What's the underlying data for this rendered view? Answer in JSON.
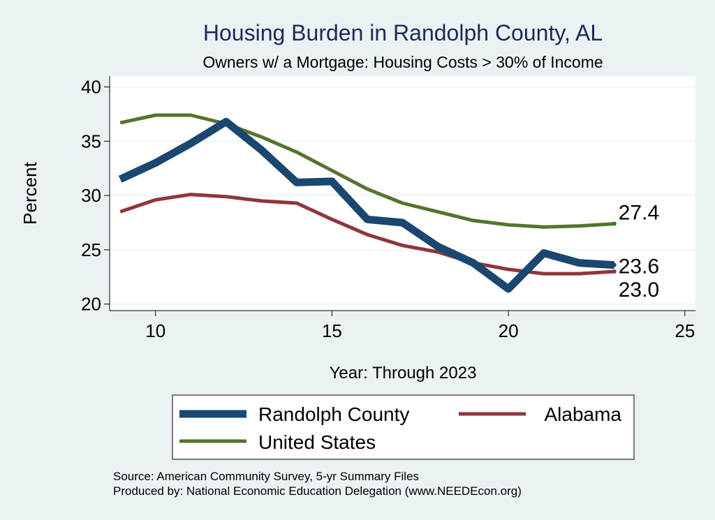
{
  "chart_data": {
    "type": "line",
    "title": "Housing Burden in Randolph County, AL",
    "subtitle": "Owners w/ a Mortgage: Housing Costs > 30% of Income",
    "xlabel": "Year: Through 2023",
    "ylabel": "Percent",
    "xlim": [
      8.7,
      25.3
    ],
    "ylim": [
      19.4,
      41.0
    ],
    "xticks": [
      10,
      15,
      20,
      25
    ],
    "yticks": [
      20,
      25,
      30,
      35,
      40
    ],
    "grid": true,
    "legend_position": "bottom",
    "x": [
      9,
      10,
      11,
      12,
      13,
      14,
      15,
      16,
      17,
      18,
      19,
      20,
      21,
      22,
      23
    ],
    "series": [
      {
        "name": "Randolph County",
        "color": "#1a476f",
        "values": [
          31.5,
          33.0,
          34.8,
          36.8,
          34.2,
          31.2,
          31.3,
          27.8,
          27.5,
          25.3,
          23.8,
          21.4,
          24.7,
          23.8,
          23.6
        ],
        "end_label": "23.6"
      },
      {
        "name": "Alabama",
        "color": "#90353b",
        "values": [
          28.5,
          29.6,
          30.1,
          29.9,
          29.5,
          29.3,
          27.8,
          26.4,
          25.4,
          24.8,
          23.8,
          23.2,
          22.8,
          22.8,
          23.0
        ],
        "end_label": "23.0"
      },
      {
        "name": "United States",
        "color": "#55752f",
        "values": [
          36.7,
          37.4,
          37.4,
          36.6,
          35.4,
          34.0,
          32.3,
          30.6,
          29.3,
          28.5,
          27.7,
          27.3,
          27.1,
          27.2,
          27.4
        ],
        "end_label": "27.4"
      }
    ]
  },
  "footer": {
    "source": "Source: American Community Survey, 5-yr Summary Files",
    "produced": "Produced by: National Economic Education Delegation (www.NEEDEcon.org)"
  }
}
